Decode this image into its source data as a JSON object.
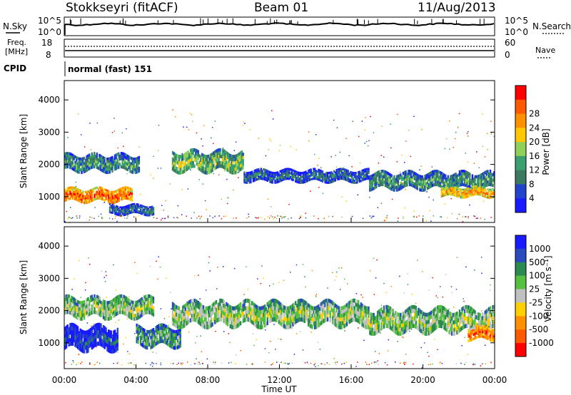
{
  "header": {
    "station": "Stokkseyri (fitACF)",
    "beam": "Beam 01",
    "date": "11/Aug/2013"
  },
  "top_panels": {
    "nsky_label": "N.Sky",
    "nsky_ticks": [
      "10^5",
      "10^0"
    ],
    "nsearch_label": "N.Search",
    "nsearch_ticks": [
      "10^5",
      "10^0"
    ],
    "freq_label_1": "Freq.",
    "freq_label_2": "[MHz]",
    "freq_ticks": [
      "18",
      "8"
    ],
    "nave_label": "Nave",
    "nave_ticks": [
      "60",
      "0"
    ],
    "cpid_label": "CPID",
    "cpid_value": "normal (fast) 151"
  },
  "colors": {
    "power": [
      "#1a1aff",
      "#2244cc",
      "#3a7a60",
      "#3aa070",
      "#8fd05a",
      "#ffc800",
      "#ff9000",
      "#ff5a00",
      "#ff0000"
    ],
    "velocity": [
      "#1a1aff",
      "#2a4ac0",
      "#2a8a50",
      "#56c040",
      "#c0c0c0",
      "#ffd000",
      "#ff9000",
      "#ff5a00",
      "#ff0000"
    ]
  },
  "chart_data": [
    {
      "type": "heatmap",
      "quantity": "Power",
      "ylabel": "Slant Range [km]",
      "yticks": [
        "1000",
        "2000",
        "3000",
        "4000"
      ],
      "ylim": [
        200,
        4600
      ],
      "xlim_hours": [
        0,
        24
      ],
      "colorbar_label": "Power [dB]",
      "colorbar_ticks": [
        "4",
        "8",
        "12",
        "16",
        "20",
        "24",
        "28"
      ],
      "echo_bands": [
        {
          "start": 0.0,
          "end": 3.8,
          "range_center": 1050,
          "range_halfwidth": 200,
          "level": 7
        },
        {
          "start": 0.0,
          "end": 4.2,
          "range_center": 2050,
          "range_halfwidth": 250,
          "level": 3
        },
        {
          "start": 2.5,
          "end": 5.0,
          "range_center": 600,
          "range_halfwidth": 150,
          "level": 2
        },
        {
          "start": 6.0,
          "end": 10.0,
          "range_center": 2100,
          "range_halfwidth": 300,
          "level": 4
        },
        {
          "start": 10.0,
          "end": 17.0,
          "range_center": 1650,
          "range_halfwidth": 180,
          "level": 2
        },
        {
          "start": 17.0,
          "end": 24.0,
          "range_center": 1500,
          "range_halfwidth": 250,
          "level": 3
        },
        {
          "start": 21.0,
          "end": 24.0,
          "range_center": 1150,
          "range_halfwidth": 150,
          "level": 6
        }
      ]
    },
    {
      "type": "heatmap",
      "quantity": "Velocity",
      "ylabel": "Slant Range [km]",
      "yticks": [
        "1000",
        "2000",
        "3000",
        "4000"
      ],
      "ylim": [
        200,
        4600
      ],
      "xlim_hours": [
        0,
        24
      ],
      "colorbar_label": "Velocity [m s⁻¹]",
      "colorbar_ticks": [
        "1000",
        "500",
        "100",
        "25",
        "-25",
        "-100",
        "-500",
        "-1000"
      ],
      "echo_bands": [
        {
          "start": 0.0,
          "end": 3.0,
          "range_center": 1150,
          "range_halfwidth": 350,
          "level": 1
        },
        {
          "start": 0.0,
          "end": 5.0,
          "range_center": 2100,
          "range_halfwidth": 300,
          "level": 4
        },
        {
          "start": 4.0,
          "end": 6.5,
          "range_center": 1200,
          "range_halfwidth": 300,
          "level": 3
        },
        {
          "start": 6.0,
          "end": 17.0,
          "range_center": 1900,
          "range_halfwidth": 350,
          "level": 4
        },
        {
          "start": 17.0,
          "end": 24.0,
          "range_center": 1700,
          "range_halfwidth": 350,
          "level": 4
        },
        {
          "start": 22.5,
          "end": 24.0,
          "range_center": 1300,
          "range_halfwidth": 200,
          "level": 7
        }
      ]
    }
  ],
  "xaxis": {
    "ticks": [
      "00:00",
      "04:00",
      "08:00",
      "12:00",
      "16:00",
      "20:00",
      "00:00"
    ],
    "label": "Time UT"
  }
}
